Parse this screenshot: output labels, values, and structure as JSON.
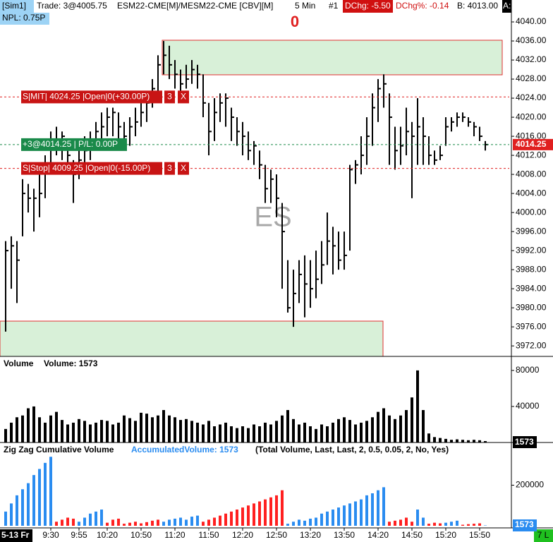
{
  "header": {
    "account": "[Sim1]",
    "trade": "Trade: 3@4005.75",
    "symbol": "ESM22-CME[M]/MESM22-CME [CBV][M]",
    "interval": "5 Min",
    "chart_number": "#1",
    "dchg": "DChg: -5.50",
    "dchg_pct": "DChg%: -0.14",
    "bid": "B: 4013.00",
    "ask": "A:",
    "npl": "NPL: 0.75P"
  },
  "position_count": 0,
  "watermark": "ES",
  "status": "7 L",
  "orders": [
    {
      "label": "S|MIT| 4024.25 |Open|0(+30.00P)",
      "qty": 3,
      "cancel": "X",
      "price": 4024.25
    },
    {
      "label": "S|Stop| 4009.25 |Open|0(-15.00P)",
      "qty": 3,
      "cancel": "X",
      "price": 4009.25
    }
  ],
  "position": {
    "label": "+3@4014.25 | P/L: 0.00P",
    "price": 4014.25
  },
  "chart_data": [
    {
      "type": "ohlc",
      "color": "#000000",
      "categories": [
        "5-13 Fr",
        null,
        null,
        null,
        null,
        null,
        null,
        null,
        "9:30",
        null,
        null,
        null,
        null,
        "9:55",
        null,
        null,
        null,
        null,
        "10:20",
        null,
        null,
        null,
        null,
        null,
        "10:50",
        null,
        null,
        null,
        null,
        null,
        "11:20",
        null,
        null,
        null,
        null,
        null,
        "11:50",
        null,
        null,
        null,
        null,
        null,
        "12:20",
        null,
        null,
        null,
        null,
        null,
        "12:50",
        null,
        null,
        null,
        null,
        null,
        "13:20",
        null,
        null,
        null,
        null,
        null,
        "13:50",
        null,
        null,
        null,
        null,
        null,
        "14:20",
        null,
        null,
        null,
        null,
        null,
        "14:50",
        null,
        null,
        null,
        null,
        null,
        "15:20",
        null,
        null,
        null,
        null,
        null,
        "15:50",
        null
      ],
      "high": [
        3994,
        3995,
        3994,
        4007,
        4006,
        4005,
        4010,
        4012,
        4017,
        4018,
        4017,
        4015,
        4011,
        4014,
        4016,
        4017,
        4019,
        4021,
        4022,
        4022,
        4021,
        4019,
        4020,
        4022,
        4023,
        4025,
        4028,
        4033,
        4036,
        4035,
        4032,
        4030,
        4031,
        4032,
        4031,
        4029,
        4023,
        4024,
        4025,
        4025,
        4022,
        4020,
        4019,
        4017,
        4015,
        4013,
        4010,
        4009,
        4008,
        4002,
        3990,
        3988,
        3990,
        3991,
        3990,
        3992,
        3994,
        4000,
        3997,
        3996,
        3996,
        4010,
        4011,
        4016,
        4020,
        4025,
        4028,
        4029,
        4025,
        4018,
        4018,
        4022,
        4019,
        4024,
        4020,
        4016,
        4013,
        4014,
        4020,
        4020,
        4021,
        4021,
        4020,
        4019,
        4018,
        4015
      ],
      "low": [
        3975,
        3984,
        3981,
        3995,
        4000,
        3996,
        3999,
        4003,
        4008,
        4012,
        4011,
        4008,
        4002,
        4007,
        4009,
        4011,
        4013,
        4015,
        4016,
        4016,
        4013,
        4014,
        4014,
        4016,
        4018,
        4019,
        4022,
        4025,
        4029,
        4028,
        4026,
        4024,
        4026,
        4027,
        4026,
        4020,
        4012,
        4015,
        4019,
        4018,
        4015,
        4014,
        4012,
        4011,
        4010,
        4007,
        4002,
        4002,
        3999,
        3984,
        3979,
        3976,
        3981,
        3978,
        3980,
        3982,
        3985,
        3989,
        3987,
        3988,
        3988,
        3992,
        4006,
        4008,
        4010,
        4014,
        4019,
        4022,
        4010,
        4009,
        4010,
        4012,
        4003,
        4010,
        4010,
        4010,
        4010,
        4011,
        4014,
        4017,
        4018,
        4019,
        4018,
        4016,
        4015,
        4013
      ],
      "close": [
        3992,
        3993,
        3990,
        4004,
        4003,
        4003,
        4004,
        4010,
        4014,
        4015,
        4016,
        4012,
        4008,
        4011,
        4013,
        4015,
        4017,
        4018,
        4020,
        4021,
        4018,
        4016,
        4018,
        4019,
        4021,
        4023,
        4026,
        4031,
        4033,
        4031,
        4029,
        4027,
        4028,
        4030,
        4029,
        4023,
        4017,
        4021,
        4023,
        4024,
        4020,
        4017,
        4016,
        4013,
        4014,
        4010,
        4005,
        4007,
        4003,
        3996,
        3980,
        3983,
        3987,
        3985,
        3984,
        3986,
        3989,
        3994,
        3993,
        3990,
        3991,
        4009,
        4010,
        4012,
        4016,
        4022,
        4026,
        4027,
        4020,
        4013,
        4014,
        4017,
        4016,
        4018,
        4016,
        4012,
        4011,
        4012,
        4018,
        4019,
        4020,
        4020,
        4019,
        4018,
        4016,
        4014.25
      ],
      "ylim": [
        3969.8,
        4044.6
      ],
      "yticks": [
        {
          "value": 4040,
          "label": "4040.00"
        },
        {
          "value": 4036,
          "label": "4036.00"
        },
        {
          "value": 4032,
          "label": "4032.00"
        },
        {
          "value": 4028,
          "label": "4028.00"
        },
        {
          "value": 4024,
          "label": "4024.00"
        },
        {
          "value": 4020,
          "label": "4020.00"
        },
        {
          "value": 4016,
          "label": "4016.00"
        },
        {
          "value": 4012,
          "label": "4012.00"
        },
        {
          "value": 4008,
          "label": "4008.00"
        },
        {
          "value": 4004,
          "label": "4004.00"
        },
        {
          "value": 4000,
          "label": "4000.00"
        },
        {
          "value": 3996,
          "label": "3996.00"
        },
        {
          "value": 3992,
          "label": "3992.00"
        },
        {
          "value": 3988,
          "label": "3988.00"
        },
        {
          "value": 3984,
          "label": "3984.00"
        },
        {
          "value": 3980,
          "label": "3980.00"
        },
        {
          "value": 3976,
          "label": "3976.00"
        },
        {
          "value": 3972,
          "label": "3972.00"
        }
      ]
    },
    {
      "type": "bar",
      "title": "Volume",
      "value_label": "Volume: 1573",
      "color": "#000000",
      "values": [
        15000,
        22000,
        28000,
        30000,
        38000,
        40000,
        28000,
        22000,
        30000,
        34000,
        25000,
        20000,
        22000,
        26000,
        24000,
        20000,
        22000,
        25000,
        24000,
        20000,
        22000,
        30000,
        27000,
        24000,
        33000,
        32000,
        28000,
        30000,
        36000,
        30000,
        28000,
        25000,
        26000,
        24000,
        22000,
        20000,
        24000,
        18000,
        20000,
        22000,
        18000,
        16000,
        18000,
        16000,
        20000,
        18000,
        22000,
        20000,
        24000,
        30000,
        36000,
        26000,
        20000,
        22000,
        18000,
        15000,
        20000,
        18000,
        22000,
        26000,
        28000,
        25000,
        20000,
        22000,
        24000,
        28000,
        34000,
        38000,
        30000,
        26000,
        30000,
        36000,
        50000,
        80000,
        36000,
        10000,
        6000,
        5000,
        4000,
        3000,
        3500,
        3000,
        2500,
        3000,
        2500,
        1573
      ],
      "ylim": [
        0,
        94000
      ],
      "yticks": [
        40000,
        80000
      ]
    },
    {
      "type": "bar",
      "title": "Zig Zag Cumulative Volume",
      "value_label": "AccumulatedVolume: 1573",
      "parameters": "(Total Volume, Last, Last, 2, 0.5, 0.05, 2, No, Yes)",
      "values": [
        70000,
        110000,
        150000,
        180000,
        210000,
        250000,
        280000,
        310000,
        340000,
        20000,
        30000,
        40000,
        35000,
        20000,
        40000,
        60000,
        70000,
        80000,
        15000,
        30000,
        35000,
        10000,
        15000,
        20000,
        12000,
        18000,
        25000,
        30000,
        20000,
        30000,
        35000,
        40000,
        30000,
        45000,
        50000,
        20000,
        30000,
        40000,
        50000,
        60000,
        70000,
        80000,
        90000,
        100000,
        110000,
        120000,
        130000,
        140000,
        150000,
        175000,
        10000,
        20000,
        30000,
        25000,
        35000,
        40000,
        60000,
        70000,
        80000,
        90000,
        100000,
        110000,
        120000,
        130000,
        150000,
        160000,
        175000,
        190000,
        20000,
        25000,
        30000,
        40000,
        20000,
        80000,
        40000,
        10000,
        15000,
        12000,
        15000,
        20000,
        25000,
        5000,
        8000,
        10000,
        12000,
        1573
      ],
      "colors": [
        "#2a8cf0",
        "#2a8cf0",
        "#2a8cf0",
        "#2a8cf0",
        "#2a8cf0",
        "#2a8cf0",
        "#2a8cf0",
        "#2a8cf0",
        "#2a8cf0",
        "#ff2020",
        "#ff2020",
        "#ff2020",
        "#ff2020",
        "#2a8cf0",
        "#2a8cf0",
        "#2a8cf0",
        "#2a8cf0",
        "#2a8cf0",
        "#ff2020",
        "#ff2020",
        "#ff2020",
        "#ff2020",
        "#ff2020",
        "#ff2020",
        "#ff2020",
        "#ff2020",
        "#ff2020",
        "#ff2020",
        "#2a8cf0",
        "#2a8cf0",
        "#2a8cf0",
        "#2a8cf0",
        "#2a8cf0",
        "#2a8cf0",
        "#2a8cf0",
        "#ff2020",
        "#ff2020",
        "#ff2020",
        "#ff2020",
        "#ff2020",
        "#ff2020",
        "#ff2020",
        "#ff2020",
        "#ff2020",
        "#ff2020",
        "#ff2020",
        "#ff2020",
        "#ff2020",
        "#ff2020",
        "#ff2020",
        "#2a8cf0",
        "#2a8cf0",
        "#2a8cf0",
        "#2a8cf0",
        "#2a8cf0",
        "#2a8cf0",
        "#2a8cf0",
        "#2a8cf0",
        "#2a8cf0",
        "#2a8cf0",
        "#2a8cf0",
        "#2a8cf0",
        "#2a8cf0",
        "#2a8cf0",
        "#2a8cf0",
        "#2a8cf0",
        "#2a8cf0",
        "#2a8cf0",
        "#ff2020",
        "#ff2020",
        "#ff2020",
        "#ff2020",
        "#ff2020",
        "#2a8cf0",
        "#2a8cf0",
        "#ff2020",
        "#ff2020",
        "#ff2020",
        "#2a8cf0",
        "#2a8cf0",
        "#2a8cf0",
        "#ff2020",
        "#ff2020",
        "#ff2020",
        "#ff2020",
        "#2a8cf0"
      ],
      "ylim": [
        0,
        400000
      ],
      "yticks": [
        200000
      ]
    }
  ]
}
